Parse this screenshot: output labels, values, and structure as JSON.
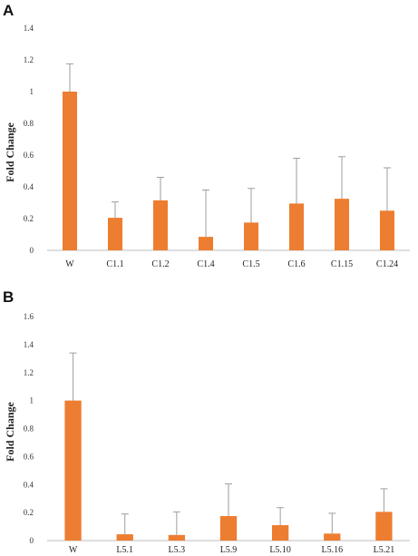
{
  "chart_data": [
    {
      "panel": "A",
      "type": "bar",
      "ylabel": "Fold Change",
      "ylim": [
        0,
        1.4
      ],
      "yticks": [
        "0",
        "0.2",
        "0.4",
        "0.6",
        "0.8",
        "1",
        "1.2",
        "1.4"
      ],
      "categories": [
        "W",
        "C1.1",
        "C1.2",
        "C1.4",
        "C1.5",
        "C1.6",
        "C1.15",
        "C1.24"
      ],
      "values": [
        1.0,
        0.205,
        0.315,
        0.085,
        0.175,
        0.295,
        0.325,
        0.25
      ],
      "error": [
        0.175,
        0.1,
        0.145,
        0.295,
        0.215,
        0.285,
        0.265,
        0.27
      ],
      "color": "#ED7D31",
      "error_color": "#9e9e9e"
    },
    {
      "panel": "B",
      "type": "bar",
      "ylabel": "Fold Change",
      "ylim": [
        0,
        1.6
      ],
      "yticks": [
        "0",
        "0.2",
        "0.4",
        "0.6",
        "0.8",
        "1",
        "1.2",
        "1.4",
        "1.6"
      ],
      "categories": [
        "W",
        "L5.1",
        "L5.3",
        "L5.9",
        "L5.10",
        "L5.16",
        "L5.21"
      ],
      "values": [
        1.0,
        0.045,
        0.04,
        0.175,
        0.11,
        0.05,
        0.205
      ],
      "error": [
        0.34,
        0.145,
        0.165,
        0.23,
        0.125,
        0.145,
        0.165
      ],
      "color": "#ED7D31",
      "error_color": "#9e9e9e"
    }
  ]
}
